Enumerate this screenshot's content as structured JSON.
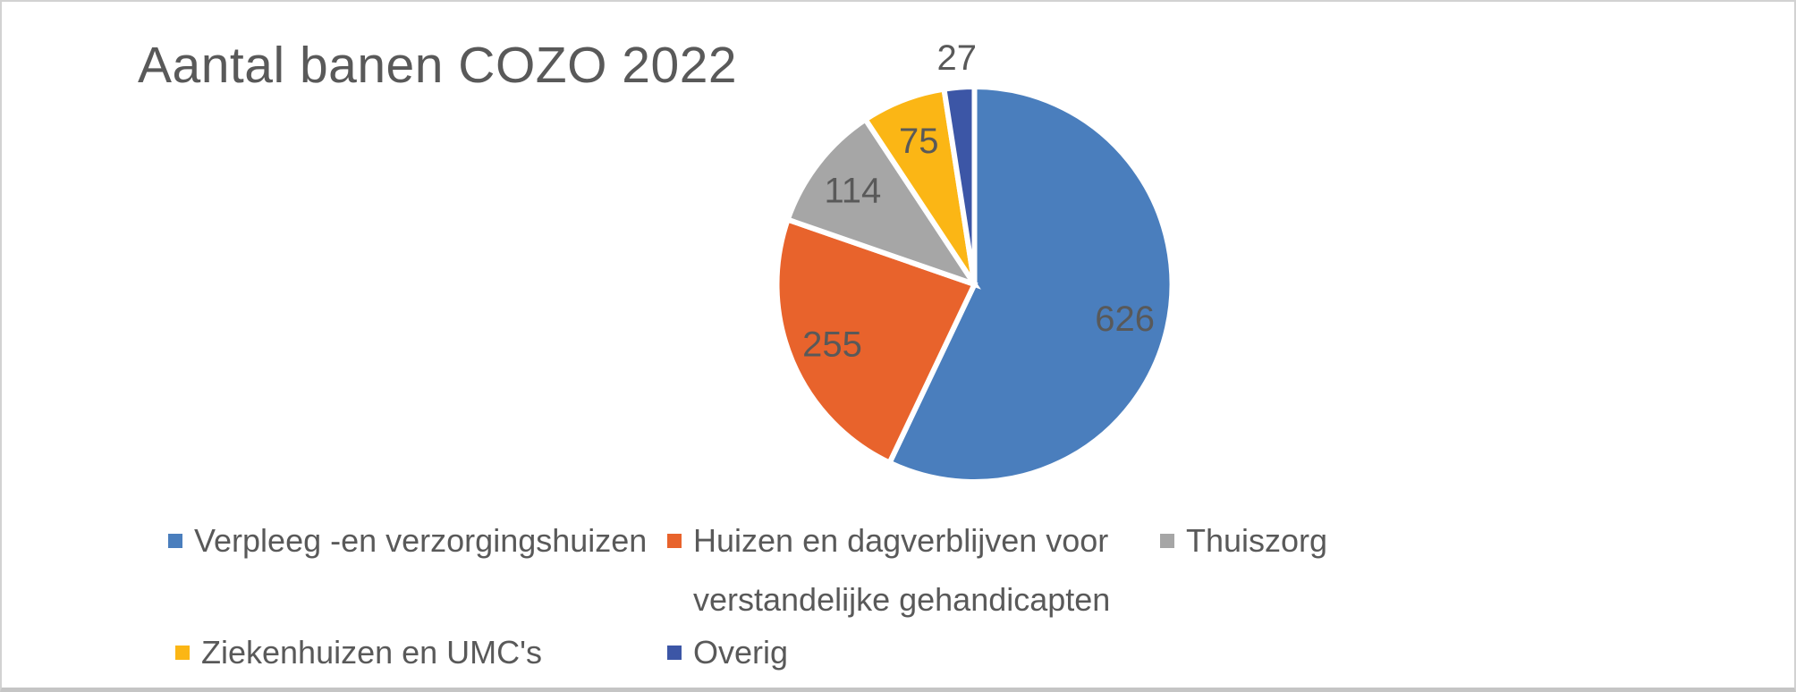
{
  "title": "Aantal banen COZO 2022",
  "colors": {
    "text": "#595959",
    "background": "#FFFFFF",
    "frame_border": "#D2D2D2"
  },
  "chart_data": {
    "type": "pie",
    "title": "Aantal banen COZO 2022",
    "direction": "clockwise",
    "start_angle_deg": 0,
    "total": 1097,
    "legend_position": "bottom",
    "slices": [
      {
        "label": "Verpleeg -en verzorgingshuizen",
        "value": 626,
        "data_label": "626",
        "color": "#4A7EBD",
        "label_placement": "inside"
      },
      {
        "label": "Huizen en dagverblijven voor verstandelijke gehandicapten",
        "value": 255,
        "data_label": "255",
        "color": "#E8632C",
        "label_placement": "inside"
      },
      {
        "label": "Thuiszorg",
        "value": 114,
        "data_label": "114",
        "color": "#A6A6A6",
        "label_placement": "inside"
      },
      {
        "label": "Ziekenhuizen en UMC's",
        "value": 75,
        "data_label": "75",
        "color": "#FBB615",
        "label_placement": "inside"
      },
      {
        "label": "Overig",
        "value": 27,
        "data_label": "27",
        "color": "#3C56A6",
        "label_placement": "outside"
      }
    ]
  }
}
